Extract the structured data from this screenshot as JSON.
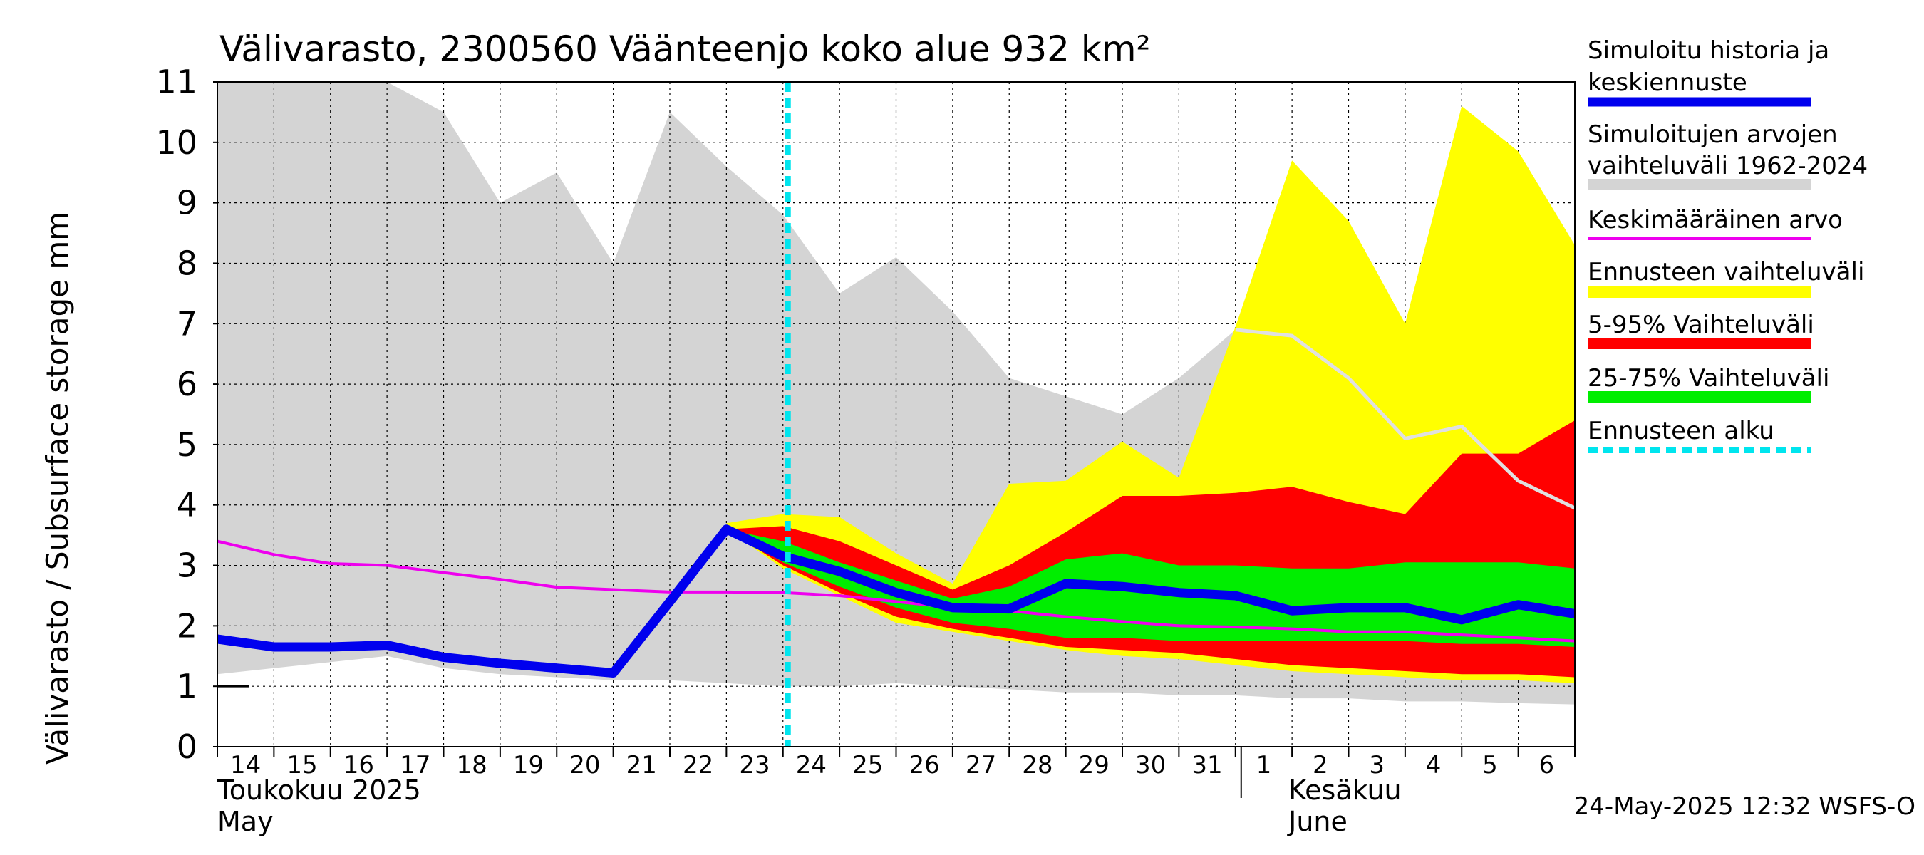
{
  "chart_data": {
    "type": "area",
    "title": "Välivarasto, 2300560 Väänteenjo koko alue 932 km²",
    "ylabel": "Välivarasto / Subsurface storage  mm",
    "ylim": [
      0,
      11
    ],
    "yticks": [
      "0",
      "1",
      "2",
      "3",
      "4",
      "5",
      "6",
      "7",
      "8",
      "9",
      "10",
      "11"
    ],
    "grid": true,
    "x_dates": [
      "2025-05-14",
      "2025-05-15",
      "2025-05-16",
      "2025-05-17",
      "2025-05-18",
      "2025-05-19",
      "2025-05-20",
      "2025-05-21",
      "2025-05-22",
      "2025-05-23",
      "2025-05-24",
      "2025-05-25",
      "2025-05-26",
      "2025-05-27",
      "2025-05-28",
      "2025-05-29",
      "2025-05-30",
      "2025-05-31",
      "2025-06-01",
      "2025-06-02",
      "2025-06-03",
      "2025-06-04",
      "2025-06-05",
      "2025-06-06",
      "2025-06-07"
    ],
    "xtick_labels": [
      "14",
      "15",
      "16",
      "17",
      "18",
      "19",
      "20",
      "21",
      "22",
      "23",
      "24",
      "25",
      "26",
      "27",
      "28",
      "29",
      "30",
      "31",
      "1",
      "2",
      "3",
      "4",
      "5",
      "6"
    ],
    "month_labels": {
      "may_fi": "Toukokuu  2025",
      "may_en": "May",
      "june_fi": "Kesäkuu",
      "june_en": "June"
    },
    "forecast_start": "2025-05-24",
    "historical_range": {
      "x": [
        "2025-05-14",
        "2025-05-15",
        "2025-05-16",
        "2025-05-17",
        "2025-05-18",
        "2025-05-19",
        "2025-05-20",
        "2025-05-21",
        "2025-05-22",
        "2025-05-23",
        "2025-05-24",
        "2025-05-25",
        "2025-05-26",
        "2025-05-27",
        "2025-05-28",
        "2025-05-29",
        "2025-05-30",
        "2025-05-31",
        "2025-06-01",
        "2025-06-02",
        "2025-06-03",
        "2025-06-04",
        "2025-06-05",
        "2025-06-06",
        "2025-06-07"
      ],
      "max": [
        11,
        11,
        11,
        11,
        10.5,
        9.0,
        9.5,
        8.0,
        10.5,
        9.6,
        8.8,
        7.5,
        8.1,
        7.2,
        6.1,
        5.8,
        5.5,
        6.1,
        6.9,
        6.8,
        6.1,
        5.1,
        5.3,
        4.4,
        3.95
      ],
      "min": [
        1.2,
        1.3,
        1.4,
        1.5,
        1.3,
        1.2,
        1.15,
        1.1,
        1.1,
        1.05,
        1.0,
        1.0,
        1.05,
        1.0,
        0.95,
        0.9,
        0.9,
        0.85,
        0.85,
        0.8,
        0.8,
        0.75,
        0.75,
        0.72,
        0.7
      ]
    },
    "ensemble_range": {
      "x": [
        "2025-05-23",
        "2025-05-24",
        "2025-05-25",
        "2025-05-26",
        "2025-05-27",
        "2025-05-28",
        "2025-05-29",
        "2025-05-30",
        "2025-05-31",
        "2025-06-01",
        "2025-06-02",
        "2025-06-03",
        "2025-06-04",
        "2025-06-05",
        "2025-06-06",
        "2025-06-07"
      ],
      "max": [
        3.7,
        3.85,
        3.8,
        3.2,
        2.7,
        4.35,
        4.4,
        5.05,
        4.45,
        6.95,
        9.7,
        8.7,
        7.0,
        10.6,
        9.85,
        8.3
      ],
      "min": [
        3.6,
        2.95,
        2.5,
        2.05,
        1.9,
        1.75,
        1.6,
        1.5,
        1.45,
        1.35,
        1.25,
        1.2,
        1.15,
        1.1,
        1.1,
        1.05
      ]
    },
    "p5_95": {
      "x": [
        "2025-05-23",
        "2025-05-24",
        "2025-05-25",
        "2025-05-26",
        "2025-05-27",
        "2025-05-28",
        "2025-05-29",
        "2025-05-30",
        "2025-05-31",
        "2025-06-01",
        "2025-06-02",
        "2025-06-03",
        "2025-06-04",
        "2025-06-05",
        "2025-06-06",
        "2025-06-07"
      ],
      "upper": [
        3.6,
        3.65,
        3.4,
        3.0,
        2.6,
        3.0,
        3.55,
        4.15,
        4.15,
        4.2,
        4.3,
        4.05,
        3.85,
        4.85,
        4.85,
        5.4
      ],
      "lower": [
        3.6,
        3.0,
        2.55,
        2.15,
        1.95,
        1.8,
        1.65,
        1.6,
        1.55,
        1.45,
        1.35,
        1.3,
        1.25,
        1.2,
        1.2,
        1.15
      ]
    },
    "p25_75": {
      "x": [
        "2025-05-23",
        "2025-05-24",
        "2025-05-25",
        "2025-05-26",
        "2025-05-27",
        "2025-05-28",
        "2025-05-29",
        "2025-05-30",
        "2025-05-31",
        "2025-06-01",
        "2025-06-02",
        "2025-06-03",
        "2025-06-04",
        "2025-06-05",
        "2025-06-06",
        "2025-06-07"
      ],
      "upper": [
        3.6,
        3.4,
        3.05,
        2.75,
        2.45,
        2.65,
        3.1,
        3.2,
        3.0,
        3.0,
        2.95,
        2.95,
        3.05,
        3.05,
        3.05,
        2.95
      ],
      "lower": [
        3.6,
        3.05,
        2.65,
        2.3,
        2.05,
        1.95,
        1.8,
        1.8,
        1.75,
        1.75,
        1.75,
        1.75,
        1.75,
        1.7,
        1.7,
        1.65
      ]
    },
    "mean": {
      "x": [
        "2025-05-14",
        "2025-05-15",
        "2025-05-16",
        "2025-05-17",
        "2025-05-18",
        "2025-05-19",
        "2025-05-20",
        "2025-05-21",
        "2025-05-22",
        "2025-05-23",
        "2025-05-24",
        "2025-05-25",
        "2025-05-26",
        "2025-05-27",
        "2025-05-28",
        "2025-05-29",
        "2025-05-30",
        "2025-05-31",
        "2025-06-01",
        "2025-06-02",
        "2025-06-03",
        "2025-06-04",
        "2025-06-05",
        "2025-06-06",
        "2025-06-07"
      ],
      "y": [
        3.4,
        3.18,
        3.03,
        3.0,
        2.88,
        2.77,
        2.64,
        2.6,
        2.56,
        2.56,
        2.55,
        2.5,
        2.4,
        2.3,
        2.25,
        2.15,
        2.07,
        2.0,
        1.98,
        1.95,
        1.9,
        1.9,
        1.85,
        1.8,
        1.75
      ]
    },
    "simulated": {
      "x": [
        "2025-05-14",
        "2025-05-15",
        "2025-05-16",
        "2025-05-17",
        "2025-05-18",
        "2025-05-19",
        "2025-05-20",
        "2025-05-21",
        "2025-05-22",
        "2025-05-23",
        "2025-05-24",
        "2025-05-25",
        "2025-05-26",
        "2025-05-27",
        "2025-05-28",
        "2025-05-29",
        "2025-05-30",
        "2025-05-31",
        "2025-06-01",
        "2025-06-02",
        "2025-06-03",
        "2025-06-04",
        "2025-06-05",
        "2025-06-06",
        "2025-06-07"
      ],
      "y": [
        1.78,
        1.65,
        1.65,
        1.68,
        1.48,
        1.38,
        1.3,
        1.22,
        2.4,
        3.6,
        3.15,
        2.9,
        2.55,
        2.3,
        2.28,
        2.7,
        2.65,
        2.55,
        2.5,
        2.25,
        2.3,
        2.3,
        2.1,
        2.35,
        2.2
      ]
    },
    "legend": [
      {
        "lines": [
          "Simuloitu historia ja",
          "keskiennuste"
        ],
        "color": "#0000ee",
        "style": "thick"
      },
      {
        "lines": [
          "Simuloitujen arvojen",
          "vaihteluväli 1962-2024"
        ],
        "color": "#d4d4d4",
        "style": "band"
      },
      {
        "lines": [
          "Keskimääräinen arvo"
        ],
        "color": "#ee00ee",
        "style": "thin"
      },
      {
        "lines": [
          "Ennusteen vaihteluväli"
        ],
        "color": "#ffff00",
        "style": "band"
      },
      {
        "lines": [
          "5-95% Vaihteluväli"
        ],
        "color": "#ff0000",
        "style": "band"
      },
      {
        "lines": [
          "25-75% Vaihteluväli"
        ],
        "color": "#00ee00",
        "style": "band"
      },
      {
        "lines": [
          "Ennusteen alku"
        ],
        "color": "#00e5ee",
        "style": "dashed"
      }
    ],
    "colors": {
      "historical": "#d4d4d4",
      "ensemble": "#ffff00",
      "p5_95": "#ff0000",
      "p25_75": "#00ee00",
      "mean": "#ee00ee",
      "simulated": "#0000ee",
      "forecast_line": "#00e5ee",
      "median_hist": "#e0e0e0"
    },
    "timestamp": "24-May-2025 12:32 WSFS-O"
  }
}
